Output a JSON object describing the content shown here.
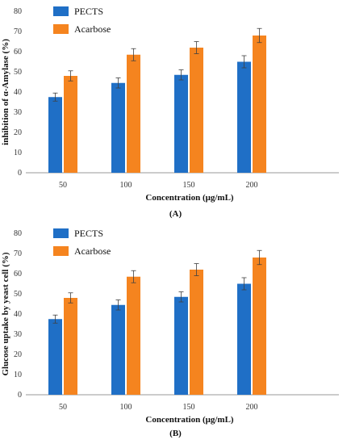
{
  "colors": {
    "pects": "#1f6fc6",
    "acarbose": "#f5841f",
    "axis": "#9a9a9a",
    "error": "#404040"
  },
  "chart_data": [
    {
      "type": "bar",
      "panel_label": "(A)",
      "categories": [
        "50",
        "100",
        "150",
        "200"
      ],
      "series": [
        {
          "name": "PECTS",
          "values": [
            37.5,
            44.5,
            48.5,
            55
          ],
          "errors": [
            2,
            2.5,
            2.5,
            3
          ]
        },
        {
          "name": "Acarbose",
          "values": [
            48,
            58.5,
            62,
            68
          ],
          "errors": [
            2.5,
            3,
            3,
            3.5
          ]
        }
      ],
      "xlabel": "Concentration (μg/mL)",
      "ylabel": "inhibition of α-Amylase (%)",
      "ylim": [
        0,
        80
      ],
      "yticks": [
        "0",
        "10",
        "20",
        "30",
        "40",
        "50",
        "60",
        "70",
        "80"
      ],
      "grid": false,
      "legend": "top-left"
    },
    {
      "type": "bar",
      "panel_label": "(B)",
      "categories": [
        "50",
        "100",
        "150",
        "200"
      ],
      "series": [
        {
          "name": "PECTS",
          "values": [
            37.5,
            44.5,
            48.5,
            55
          ],
          "errors": [
            2,
            2.5,
            2.5,
            3
          ]
        },
        {
          "name": "Acarbose",
          "values": [
            48,
            58.5,
            62,
            68
          ],
          "errors": [
            2.5,
            3,
            3,
            3.5
          ]
        }
      ],
      "xlabel": "Concentration (μg/mL)",
      "ylabel": "Glucose uptake by yeast cell (%)",
      "ylim": [
        0,
        80
      ],
      "yticks": [
        "0",
        "10",
        "20",
        "30",
        "40",
        "50",
        "60",
        "70",
        "80"
      ],
      "grid": false,
      "legend": "top-left"
    }
  ]
}
